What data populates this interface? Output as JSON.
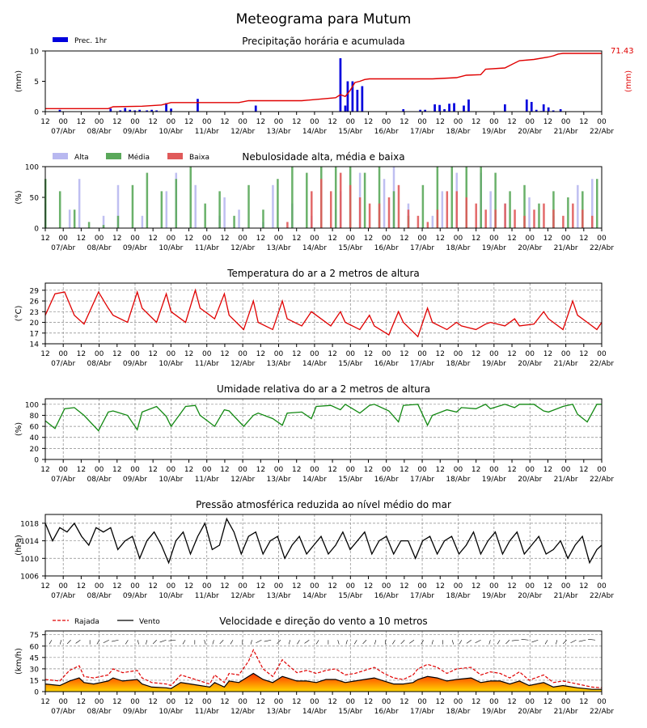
{
  "title": "Meteograma para Mutum",
  "x_tick_labels": [
    "12",
    "00",
    "12",
    "00",
    "12",
    "00",
    "12",
    "00",
    "12",
    "00",
    "12",
    "00",
    "12",
    "00",
    "12",
    "00",
    "12",
    "00",
    "12",
    "00",
    "12",
    "00",
    "12",
    "00",
    "12",
    "00",
    "12",
    "00",
    "12",
    "00",
    "12",
    "00"
  ],
  "x_day_labels": [
    "07/Abr",
    "08/Abr",
    "09/Abr",
    "10/Abr",
    "11/Abr",
    "12/Abr",
    "13/Abr",
    "14/Abr",
    "15/Abr",
    "16/Abr",
    "17/Abr",
    "18/Abr",
    "19/Abr",
    "20/Abr",
    "21/Abr",
    "22/Abr"
  ],
  "colors": {
    "precip_bar": "#0000dd",
    "precip_accum": "#e00000",
    "cloud_high": "#b8b8f0",
    "cloud_mid": "#5aa85a",
    "cloud_low": "#e05a5a",
    "temperature": "#e00000",
    "humidity": "#118811",
    "pressure": "#000000",
    "gust": "#e00000",
    "wind": "#000000"
  },
  "chart_data": [
    {
      "id": "precip",
      "type": "bar",
      "title": "Precipitação horária e acumulada",
      "ylabel": "(mm)",
      "ylabel_right": "(mm)",
      "legend": [
        "Prec. 1hr"
      ],
      "yticks": [
        "0",
        "5",
        "10"
      ],
      "ylim": [
        0,
        10
      ],
      "accum_final_label": "71.43",
      "bars_x_hours": [
        6,
        27,
        31,
        33,
        35,
        37,
        39,
        42,
        44,
        46,
        50,
        52,
        63,
        87,
        122,
        124,
        125,
        127,
        129,
        131,
        148,
        155,
        157,
        161,
        163,
        165,
        167,
        169,
        173,
        175,
        190,
        199,
        201,
        203,
        205,
        206,
        208,
        210,
        213
      ],
      "bars_values": [
        0.3,
        0.5,
        0.2,
        0.6,
        0.3,
        0.2,
        0.3,
        0.2,
        0.3,
        0.2,
        1.4,
        0.5,
        2.1,
        1.0,
        8.8,
        1.0,
        5.0,
        5.0,
        3.6,
        4.2,
        0.4,
        0.3,
        0.3,
        1.2,
        1.1,
        0.4,
        1.3,
        1.4,
        1.0,
        2.0,
        1.2,
        2.0,
        1.6,
        0.3,
        0.1,
        1.2,
        0.7,
        0.2,
        0.4
      ],
      "accum_x_hours": [
        0,
        26,
        28,
        40,
        48,
        52,
        80,
        84,
        106,
        120,
        122,
        124,
        126,
        128,
        130,
        132,
        134,
        160,
        170,
        174,
        180,
        182,
        190,
        196,
        202,
        208,
        210,
        212,
        214,
        230
      ],
      "accum_values": [
        0.5,
        0.5,
        0.8,
        0.9,
        1.1,
        1.5,
        1.5,
        1.8,
        1.8,
        2.3,
        2.8,
        2.5,
        3.5,
        4.8,
        5.0,
        5.3,
        5.4,
        5.4,
        5.6,
        6.0,
        6.1,
        7.0,
        7.2,
        8.4,
        8.6,
        9.0,
        9.2,
        9.5,
        9.6,
        9.6
      ]
    },
    {
      "id": "cloud",
      "type": "bar",
      "title": "Nebulosidade alta, média e baixa",
      "ylabel": "(%)",
      "legend": [
        "Alta",
        "Média",
        "Baixa"
      ],
      "yticks": [
        "0",
        "50",
        "100"
      ],
      "ylim": [
        0,
        100
      ],
      "high_x": [
        0,
        10,
        14,
        24,
        30,
        40,
        50,
        54,
        62,
        72,
        74,
        80,
        90,
        94,
        102,
        110,
        120,
        122,
        130,
        140,
        144,
        150,
        160,
        164,
        170,
        180,
        184,
        190,
        200,
        210,
        220,
        226
      ],
      "high_values": [
        40,
        30,
        80,
        20,
        70,
        20,
        60,
        90,
        70,
        20,
        50,
        30,
        10,
        70,
        40,
        20,
        30,
        60,
        90,
        80,
        100,
        40,
        20,
        60,
        90,
        90,
        60,
        40,
        50,
        20,
        70,
        80
      ],
      "mid_x": [
        0,
        6,
        12,
        18,
        24,
        30,
        36,
        42,
        48,
        54,
        60,
        66,
        72,
        78,
        84,
        90,
        96,
        102,
        108,
        114,
        120,
        126,
        132,
        138,
        144,
        150,
        156,
        162,
        168,
        174,
        180,
        186,
        192,
        198,
        204,
        210,
        216,
        222,
        228
      ],
      "mid_values": [
        80,
        60,
        30,
        10,
        5,
        20,
        70,
        90,
        60,
        80,
        100,
        40,
        60,
        20,
        70,
        30,
        80,
        100,
        90,
        100,
        100,
        100,
        90,
        100,
        60,
        20,
        70,
        100,
        100,
        100,
        100,
        90,
        60,
        70,
        40,
        60,
        50,
        60,
        80
      ],
      "low_x": [
        0,
        10,
        20,
        30,
        40,
        50,
        60,
        70,
        80,
        90,
        100,
        110,
        114,
        118,
        122,
        126,
        130,
        134,
        138,
        142,
        146,
        150,
        154,
        158,
        162,
        166,
        170,
        174,
        178,
        182,
        186,
        190,
        194,
        198,
        202,
        206,
        210,
        214,
        218,
        222,
        226
      ],
      "low_values": [
        0,
        0,
        0,
        0,
        0,
        0,
        0,
        0,
        0,
        0,
        10,
        60,
        80,
        60,
        90,
        70,
        50,
        40,
        40,
        50,
        70,
        30,
        20,
        10,
        30,
        60,
        60,
        50,
        40,
        30,
        30,
        40,
        30,
        20,
        30,
        40,
        30,
        20,
        40,
        30,
        20
      ]
    },
    {
      "id": "temperature",
      "type": "line",
      "title": "Temperatura do ar a 2 metros de altura",
      "ylabel": "(°C)",
      "yticks": [
        "14",
        "17",
        "20",
        "23",
        "26",
        "29"
      ],
      "ylim": [
        14,
        31
      ],
      "x_hours": [
        0,
        4,
        8,
        12,
        16,
        22,
        26,
        28,
        34,
        38,
        40,
        46,
        50,
        52,
        58,
        62,
        64,
        70,
        74,
        76,
        82,
        86,
        88,
        94,
        98,
        100,
        106,
        110,
        112,
        118,
        122,
        124,
        130,
        134,
        136,
        142,
        146,
        148,
        154,
        158,
        160,
        166,
        170,
        172,
        178,
        182,
        184,
        190,
        194,
        196,
        202,
        206,
        208,
        214,
        218,
        220,
        224,
        228,
        230
      ],
      "values": [
        22,
        28,
        28.5,
        22,
        19.5,
        28.5,
        24,
        22,
        20,
        28.5,
        24,
        20,
        28,
        23,
        20,
        29,
        24,
        21,
        28,
        22,
        18,
        26,
        20,
        18,
        26,
        21,
        19,
        23,
        22,
        19,
        23,
        20,
        18,
        22,
        19,
        16.5,
        23,
        20,
        16,
        24,
        20,
        18,
        20,
        19,
        18,
        19.5,
        20,
        19,
        21,
        19,
        19.5,
        23,
        21,
        18,
        26,
        22,
        20,
        18,
        20
      ]
    },
    {
      "id": "humidity",
      "type": "line",
      "title": "Umidade relativa do ar a 2 metros de altura",
      "ylabel": "(%)",
      "yticks": [
        "0",
        "20",
        "40",
        "60",
        "80",
        "100"
      ],
      "ylim": [
        0,
        110
      ],
      "x_hours": [
        0,
        4,
        8,
        12,
        16,
        22,
        26,
        28,
        34,
        38,
        40,
        46,
        50,
        52,
        58,
        62,
        64,
        70,
        74,
        76,
        82,
        86,
        88,
        94,
        98,
        100,
        106,
        110,
        112,
        118,
        122,
        124,
        130,
        134,
        136,
        142,
        146,
        148,
        154,
        158,
        160,
        166,
        170,
        172,
        178,
        182,
        184,
        190,
        194,
        196,
        202,
        206,
        208,
        214,
        218,
        220,
        224,
        228,
        230
      ],
      "values": [
        70,
        56,
        92,
        94,
        80,
        52,
        86,
        88,
        80,
        54,
        86,
        96,
        78,
        60,
        96,
        98,
        80,
        60,
        90,
        88,
        60,
        80,
        84,
        74,
        62,
        84,
        86,
        74,
        96,
        98,
        90,
        100,
        84,
        98,
        100,
        88,
        68,
        98,
        100,
        62,
        80,
        90,
        86,
        94,
        92,
        100,
        92,
        100,
        94,
        100,
        100,
        88,
        86,
        96,
        100,
        82,
        68,
        100,
        100
      ]
    },
    {
      "id": "pressure",
      "type": "line",
      "title": "Pressão atmosférica reduzida ao nível médio do mar",
      "ylabel": "(hPa)",
      "yticks": [
        "1006",
        "1010",
        "1014",
        "1018"
      ],
      "ylim": [
        1006,
        1020
      ],
      "x_hours": [
        0,
        3,
        6,
        9,
        12,
        15,
        18,
        21,
        24,
        27,
        30,
        33,
        36,
        39,
        42,
        45,
        48,
        51,
        54,
        57,
        60,
        63,
        66,
        69,
        72,
        75,
        78,
        81,
        84,
        87,
        90,
        93,
        96,
        99,
        102,
        105,
        108,
        111,
        114,
        117,
        120,
        123,
        126,
        129,
        132,
        135,
        138,
        141,
        144,
        147,
        150,
        153,
        156,
        159,
        162,
        165,
        168,
        171,
        174,
        177,
        180,
        183,
        186,
        189,
        192,
        195,
        198,
        201,
        204,
        207,
        210,
        213,
        216,
        219,
        222,
        225,
        228,
        230
      ],
      "values": [
        1018,
        1014,
        1017,
        1016,
        1018,
        1015,
        1013,
        1017,
        1016,
        1017,
        1012,
        1014,
        1015,
        1010,
        1014,
        1016,
        1013,
        1009,
        1014,
        1016,
        1011,
        1015,
        1018,
        1012,
        1013,
        1019,
        1016,
        1011,
        1015,
        1016,
        1011,
        1014,
        1015,
        1010,
        1013,
        1015,
        1011,
        1013,
        1015,
        1011,
        1013,
        1016,
        1012,
        1014,
        1016,
        1011,
        1014,
        1015,
        1011,
        1014,
        1014,
        1010,
        1014,
        1015,
        1011,
        1014,
        1015,
        1011,
        1013,
        1016,
        1011,
        1014,
        1016,
        1011,
        1014,
        1016,
        1011,
        1013,
        1015,
        1011,
        1012,
        1014,
        1010,
        1013,
        1015,
        1009,
        1012,
        1013
      ]
    },
    {
      "id": "wind",
      "type": "line",
      "title": "Velocidade e direção do vento a 10 metros",
      "ylabel": "(km/h)",
      "legend": [
        "Rajada",
        "Vento"
      ],
      "yticks": [
        "0",
        "15",
        "30",
        "45",
        "60",
        "75"
      ],
      "ylim": [
        0,
        80
      ],
      "x_hours": [
        0,
        6,
        10,
        14,
        16,
        20,
        26,
        28,
        32,
        38,
        40,
        44,
        50,
        52,
        56,
        60,
        64,
        68,
        70,
        74,
        76,
        80,
        84,
        86,
        90,
        94,
        98,
        100,
        104,
        108,
        112,
        116,
        120,
        124,
        128,
        132,
        136,
        140,
        144,
        148,
        152,
        154,
        158,
        162,
        166,
        170,
        176,
        180,
        184,
        188,
        192,
        196,
        200,
        206,
        210,
        214,
        220,
        226,
        230
      ],
      "gust": [
        16,
        14,
        28,
        34,
        20,
        18,
        22,
        30,
        25,
        28,
        18,
        12,
        10,
        8,
        22,
        18,
        14,
        10,
        22,
        12,
        24,
        22,
        40,
        55,
        30,
        20,
        42,
        36,
        25,
        28,
        24,
        28,
        30,
        22,
        24,
        28,
        32,
        24,
        18,
        16,
        22,
        30,
        36,
        32,
        24,
        30,
        32,
        22,
        26,
        24,
        18,
        26,
        15,
        22,
        12,
        14,
        10,
        6,
        5
      ],
      "wind": [
        10,
        8,
        14,
        18,
        12,
        10,
        14,
        18,
        14,
        16,
        10,
        6,
        5,
        4,
        12,
        10,
        8,
        6,
        12,
        6,
        14,
        12,
        20,
        24,
        16,
        12,
        20,
        18,
        14,
        14,
        12,
        16,
        16,
        12,
        14,
        16,
        18,
        14,
        10,
        10,
        12,
        16,
        20,
        18,
        14,
        16,
        18,
        12,
        14,
        14,
        10,
        14,
        8,
        12,
        6,
        8,
        5,
        3,
        3
      ],
      "arrow_directions_deg": [
        200,
        190,
        210,
        220,
        180,
        200,
        230,
        250,
        200,
        170,
        190,
        210,
        240,
        260,
        200,
        180,
        170,
        190,
        210,
        200,
        180,
        190,
        230,
        250,
        210,
        190,
        200,
        220,
        200,
        180,
        170,
        190,
        200,
        210,
        190,
        180,
        200,
        210,
        220,
        200,
        190,
        180,
        170,
        200,
        220,
        230,
        190,
        200,
        210,
        260,
        280,
        240,
        200,
        190,
        210,
        230,
        250,
        280
      ]
    }
  ]
}
